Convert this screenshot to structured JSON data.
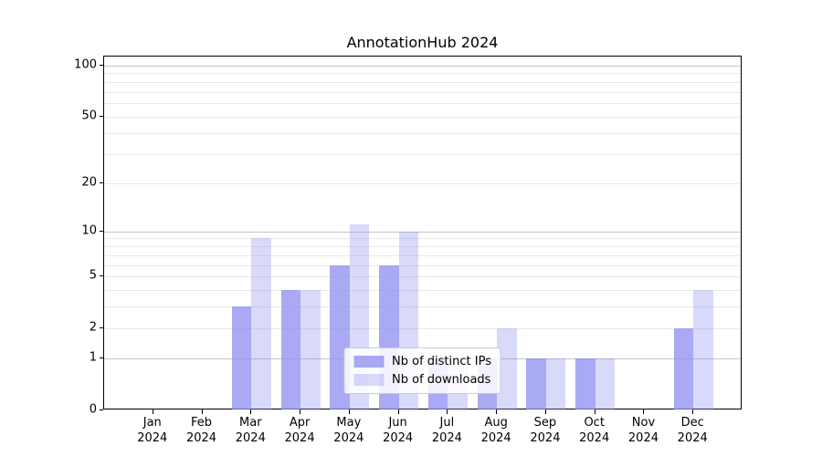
{
  "chart_data": {
    "type": "bar",
    "title": "AnnotationHub 2024",
    "categories": [
      "Jan",
      "Feb",
      "Mar",
      "Apr",
      "May",
      "Jun",
      "Jul",
      "Aug",
      "Sep",
      "Oct",
      "Nov",
      "Dec"
    ],
    "x_tick_second_line": "2024",
    "series": [
      {
        "name": "Nb of distinct IPs",
        "color": "rgba(140,140,240,0.75)",
        "values": [
          0,
          0,
          3,
          4,
          6,
          6,
          1,
          1,
          1,
          1,
          0,
          2
        ]
      },
      {
        "name": "Nb of downloads",
        "color": "rgba(140,140,240,0.33)",
        "values": [
          0,
          0,
          9,
          4,
          11,
          10,
          1,
          2,
          1,
          1,
          0,
          4
        ]
      }
    ],
    "yscale": "log1p",
    "yticks": [
      0,
      1,
      2,
      5,
      10,
      20,
      50,
      100
    ],
    "major_gridlines": [
      1,
      10,
      100
    ],
    "minor_gridlines": [
      2,
      3,
      4,
      5,
      6,
      7,
      8,
      9,
      20,
      30,
      40,
      50,
      60,
      70,
      80,
      90
    ],
    "ylim": [
      0,
      113
    ],
    "grid": true,
    "legend_position": "lower center"
  },
  "colors": {
    "background": "#ffffff",
    "spine": "#000000",
    "major_grid": "#c4c4c4",
    "minor_grid": "#e9e9e9",
    "legend_border": "#cccccc"
  }
}
